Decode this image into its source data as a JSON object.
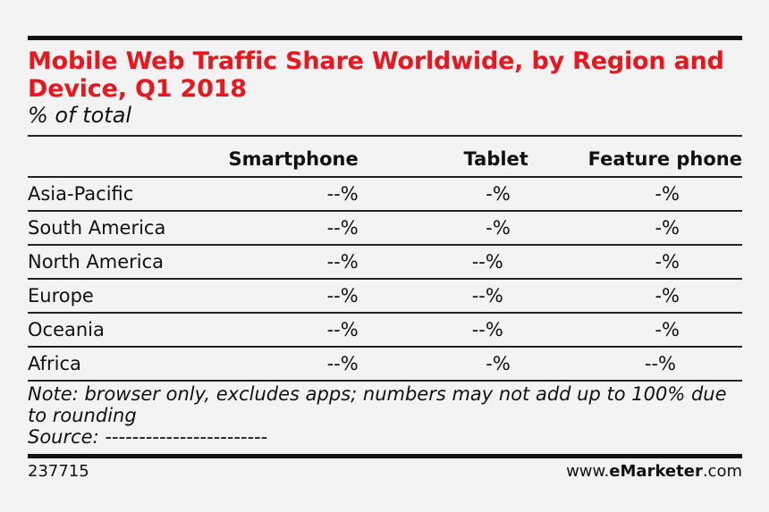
{
  "title": "Mobile Web Traffic Share Worldwide, by Region and Device, Q1 2018",
  "subtitle": "% of total",
  "columns": [
    "",
    "Smartphone",
    "Tablet",
    "Feature phone"
  ],
  "rows": [
    {
      "region": "Asia-Pacific",
      "smartphone": "--%",
      "tablet": "-%",
      "feature_phone": "-%"
    },
    {
      "region": "South America",
      "smartphone": "--%",
      "tablet": "-%",
      "feature_phone": "-%"
    },
    {
      "region": "North America",
      "smartphone": "--%",
      "tablet": "--%",
      "feature_phone": "-%"
    },
    {
      "region": "Europe",
      "smartphone": "--%",
      "tablet": "--%",
      "feature_phone": "-%"
    },
    {
      "region": "Oceania",
      "smartphone": "--%",
      "tablet": "--%",
      "feature_phone": "-%"
    },
    {
      "region": "Africa",
      "smartphone": "--%",
      "tablet": "-%",
      "feature_phone": "--%"
    }
  ],
  "note": "Note: browser only, excludes apps; numbers may not add up to 100% due to rounding",
  "source": "Source: ------------------------",
  "footer": {
    "id": "237715",
    "brand_prefix": "www.",
    "brand_bold": "eMarketer",
    "brand_suffix": ".com"
  }
}
